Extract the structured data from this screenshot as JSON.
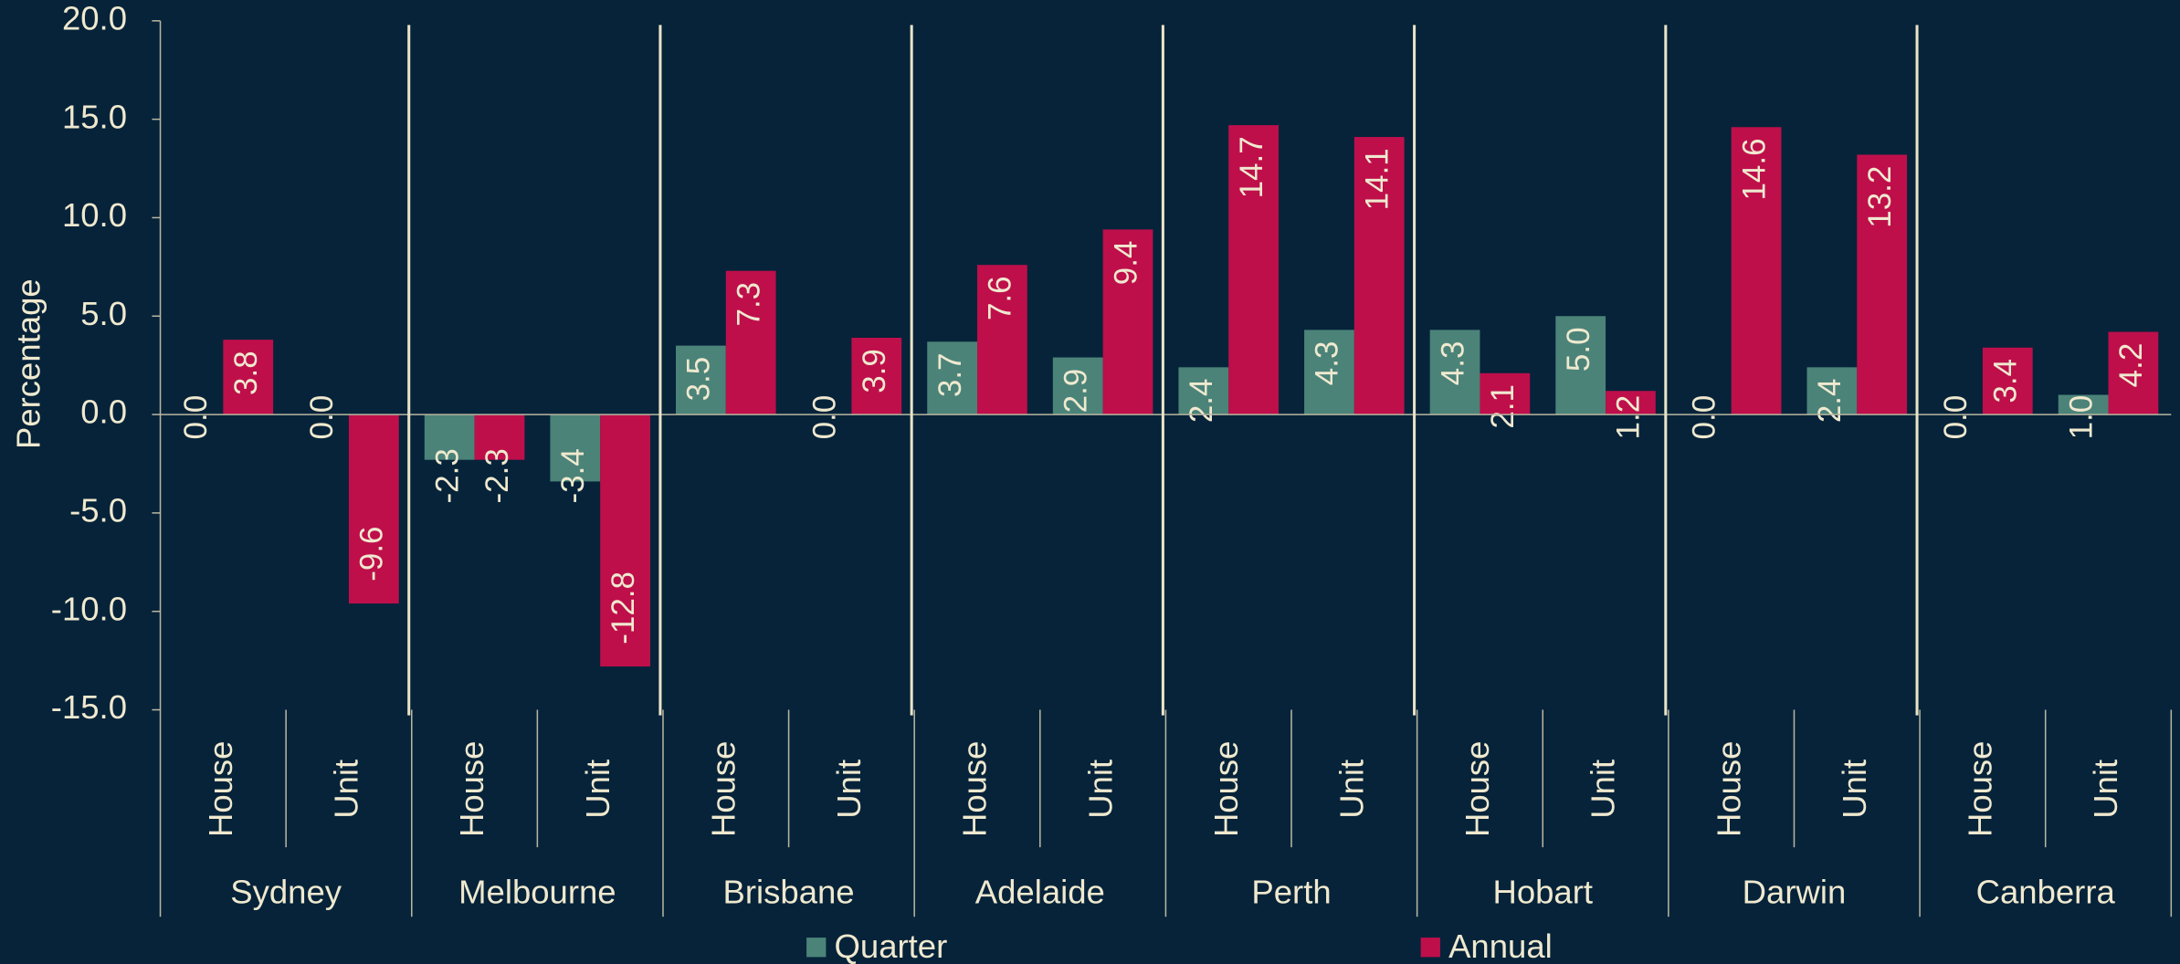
{
  "chart_data": {
    "type": "bar",
    "y_label": "Percentage",
    "categories": [
      "House",
      "Unit",
      "House",
      "Unit",
      "House",
      "Unit",
      "House",
      "Unit",
      "House",
      "Unit",
      "House",
      "Unit",
      "House",
      "Unit",
      "House",
      "Unit"
    ],
    "groups": [
      "Sydney",
      "Melbourne",
      "Brisbane",
      "Adelaide",
      "Perth",
      "Hobart",
      "Darwin",
      "Canberra"
    ],
    "series": [
      {
        "name": "Quarter",
        "color": "#4b8379",
        "values": [
          0.0,
          0.0,
          -2.3,
          -3.4,
          3.5,
          0.0,
          3.7,
          2.9,
          2.4,
          4.3,
          4.3,
          5.0,
          0.0,
          2.4,
          0.0,
          1.0
        ],
        "value_labels": [
          "0.0",
          "0.0",
          "-2.3",
          "-3.4",
          "3.5",
          "0.0",
          "3.7",
          "2.9",
          "2.4",
          "4.3",
          "4.3",
          "5.0",
          "0.0",
          "2.4",
          "0.0",
          "1.0"
        ]
      },
      {
        "name": "Annual",
        "color": "#be0f4b",
        "values": [
          3.8,
          -9.6,
          -2.3,
          -12.8,
          7.3,
          3.9,
          7.6,
          9.4,
          14.7,
          14.1,
          2.1,
          1.2,
          14.6,
          13.2,
          3.4,
          4.2
        ],
        "value_labels": [
          "3.8",
          "-9.6",
          "-2.3",
          "-12.8",
          "7.3",
          "3.9",
          "7.6",
          "9.4",
          "14.7",
          "14.1",
          "2.1",
          "1.2",
          "14.6",
          "13.2",
          "3.4",
          "4.2"
        ]
      }
    ],
    "ylim": [
      -15,
      20
    ],
    "yticks": [
      {
        "value": -15,
        "label": "-15.0"
      },
      {
        "value": -10,
        "label": "-10.0"
      },
      {
        "value": -5,
        "label": "-5.0"
      },
      {
        "value": 0,
        "label": "0.0"
      },
      {
        "value": 5,
        "label": "5.0"
      },
      {
        "value": 10,
        "label": "10.0"
      },
      {
        "value": 15,
        "label": "15.0"
      },
      {
        "value": 20,
        "label": "20.0"
      }
    ]
  }
}
